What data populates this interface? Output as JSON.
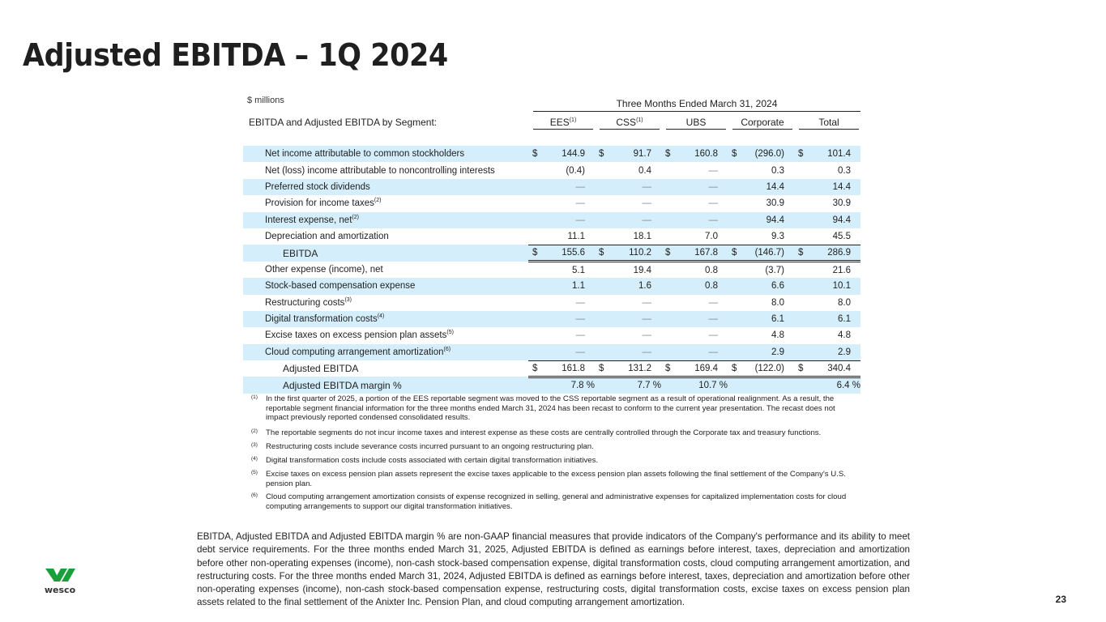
{
  "title": "Adjusted EBITDA – 1Q 2024",
  "units": "$ millions",
  "period": "Three Months Ended March 31, 2024",
  "segment_label": "EBITDA and Adjusted EBITDA by Segment:",
  "columns": [
    {
      "name": "EES",
      "sup": "(1)"
    },
    {
      "name": "CSS",
      "sup": "(1)"
    },
    {
      "name": "UBS",
      "sup": ""
    },
    {
      "name": "Corporate",
      "sup": ""
    },
    {
      "name": "Total",
      "sup": ""
    }
  ],
  "rows": [
    {
      "label": "Net income attributable to common stockholders",
      "sup": "",
      "dollar": true,
      "values": [
        "144.9",
        "91.7",
        "160.8",
        "(296.0)",
        "101.4"
      ]
    },
    {
      "label": "Net (loss) income attributable to noncontrolling interests",
      "sup": "",
      "values": [
        "(0.4)",
        "0.4",
        "—",
        "0.3",
        "0.3"
      ]
    },
    {
      "label": "Preferred stock dividends",
      "sup": "",
      "values": [
        "—",
        "—",
        "—",
        "14.4",
        "14.4"
      ]
    },
    {
      "label": "Provision for income taxes",
      "sup": "(2)",
      "values": [
        "—",
        "—",
        "—",
        "30.9",
        "30.9"
      ]
    },
    {
      "label": "Interest expense, net",
      "sup": "(2)",
      "values": [
        "—",
        "—",
        "—",
        "94.4",
        "94.4"
      ]
    },
    {
      "label": "Depreciation and amortization",
      "sup": "",
      "values": [
        "11.1",
        "18.1",
        "7.0",
        "9.3",
        "45.5"
      ]
    },
    {
      "label": "EBITDA",
      "sup": "",
      "dollar": true,
      "bold": true,
      "values": [
        "155.6",
        "110.2",
        "167.8",
        "(146.7)",
        "286.9"
      ]
    },
    {
      "label": "Other expense (income), net",
      "sup": "",
      "values": [
        "5.1",
        "19.4",
        "0.8",
        "(3.7)",
        "21.6"
      ]
    },
    {
      "label": "Stock-based compensation expense",
      "sup": "",
      "values": [
        "1.1",
        "1.6",
        "0.8",
        "6.6",
        "10.1"
      ]
    },
    {
      "label": "Restructuring costs",
      "sup": "(3)",
      "values": [
        "—",
        "—",
        "—",
        "8.0",
        "8.0"
      ]
    },
    {
      "label": "Digital transformation costs",
      "sup": "(4)",
      "values": [
        "—",
        "—",
        "—",
        "6.1",
        "6.1"
      ]
    },
    {
      "label": "Excise taxes on excess pension plan assets",
      "sup": "(5)",
      "values": [
        "—",
        "—",
        "—",
        "4.8",
        "4.8"
      ]
    },
    {
      "label": "Cloud computing arrangement amortization",
      "sup": "(6)",
      "values": [
        "—",
        "—",
        "—",
        "2.9",
        "2.9"
      ]
    },
    {
      "label": "Adjusted EBITDA",
      "sup": "",
      "dollar": true,
      "bold": true,
      "values": [
        "161.8",
        "131.2",
        "169.4",
        "(122.0)",
        "340.4"
      ]
    },
    {
      "label": "Adjusted EBITDA margin %",
      "sup": "",
      "bold": true,
      "pct": true,
      "values": [
        "7.8 %",
        "7.7 %",
        "10.7 %",
        "",
        "6.4 %"
      ]
    }
  ],
  "footnotes": [
    {
      "n": "(1)",
      "text": "In the first quarter of 2025, a portion of the EES reportable segment was moved to the CSS reportable segment as a result of operational realignment. As a result, the reportable segment financial information for the three months ended March 31, 2024 has been recast to conform to the current year presentation. The recast does not impact previously reported condensed consolidated results."
    },
    {
      "n": "(2)",
      "text": "The reportable segments do not incur income taxes and interest expense as these costs are centrally controlled through the Corporate tax and treasury functions."
    },
    {
      "n": "(3)",
      "text": "Restructuring costs include severance costs incurred pursuant to an ongoing restructuring plan."
    },
    {
      "n": "(4)",
      "text": "Digital transformation costs include costs associated with certain digital transformation initiatives."
    },
    {
      "n": "(5)",
      "text": "Excise taxes on excess pension plan assets represent the excise taxes applicable to the excess pension plan assets following the final settlement of the Company's U.S. pension plan."
    },
    {
      "n": "(6)",
      "text": "Cloud computing arrangement amortization consists of expense recognized in selling, general and administrative expenses for capitalized implementation costs for cloud computing arrangements to support our digital transformation initiatives."
    }
  ],
  "paragraph": "EBITDA, Adjusted EBITDA and Adjusted EBITDA margin % are non-GAAP financial measures that provide indicators of the Company's performance and its ability to meet debt service requirements. For the three months ended March 31, 2025, Adjusted EBITDA is defined as earnings before interest, taxes, depreciation and amortization before other non-operating expenses (income), non-cash stock-based compensation expense, digital transformation costs, cloud computing arrangement amortization, and restructuring costs. For the three months ended March 31, 2024, Adjusted EBITDA is defined as earnings before interest, taxes, depreciation and amortization before other non-operating expenses (income), non-cash stock-based compensation expense, restructuring costs, digital transformation costs, excise taxes on excess pension plan assets related to the final settlement of the Anixter Inc. Pension Plan, and cloud computing arrangement amortization.",
  "logo_text": "wesco",
  "page_number": "23",
  "colors": {
    "row_shade": "#d4eefb",
    "logo_green": "#1aa03a"
  }
}
